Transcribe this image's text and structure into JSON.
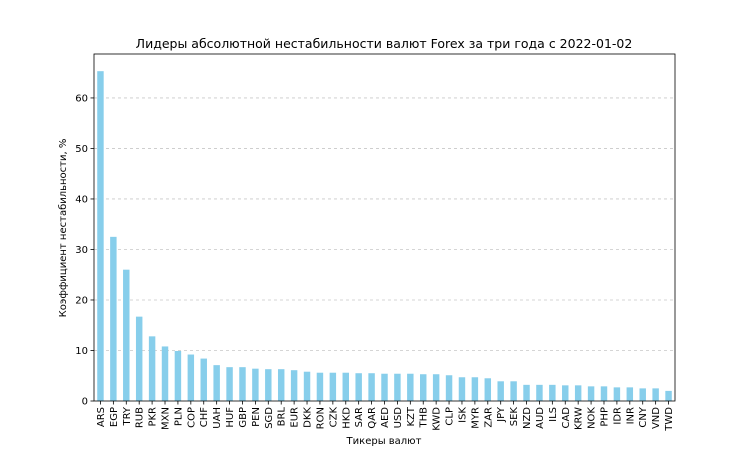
{
  "chart_data": {
    "type": "bar",
    "title": "Лидеры абсолютной нестабильности валют Forex за три года с 2022-01-02",
    "xlabel": "Тикеры валют",
    "ylabel": "Коэффициент нестабильности, %",
    "ylim": [
      0,
      68.7
    ],
    "yticks": [
      0,
      10,
      20,
      30,
      40,
      50,
      60
    ],
    "grid": "horizontal dashed",
    "bar_color": "#87ceeb",
    "categories": [
      "ARS",
      "EGP",
      "TRY",
      "RUB",
      "PKR",
      "MXN",
      "PLN",
      "COP",
      "CHF",
      "UAH",
      "HUF",
      "GBP",
      "PEN",
      "SGD",
      "BRL",
      "EUR",
      "DKK",
      "RON",
      "CZK",
      "HKD",
      "SAR",
      "QAR",
      "AED",
      "USD",
      "KZT",
      "THB",
      "KWD",
      "CLP",
      "ISK",
      "MYR",
      "ZAR",
      "JPY",
      "SEK",
      "NZD",
      "AUD",
      "ILS",
      "CAD",
      "KRW",
      "NOK",
      "PHP",
      "IDR",
      "INR",
      "CNY",
      "VND",
      "TWD"
    ],
    "values": [
      65.3,
      32.5,
      26.0,
      16.7,
      12.8,
      10.8,
      9.9,
      9.2,
      8.4,
      7.1,
      6.7,
      6.7,
      6.4,
      6.3,
      6.3,
      6.1,
      5.8,
      5.6,
      5.6,
      5.6,
      5.5,
      5.5,
      5.4,
      5.4,
      5.4,
      5.3,
      5.3,
      5.1,
      4.7,
      4.7,
      4.5,
      3.9,
      3.9,
      3.2,
      3.2,
      3.2,
      3.1,
      3.1,
      2.9,
      2.9,
      2.7,
      2.7,
      2.5,
      2.5,
      2.0
    ]
  }
}
